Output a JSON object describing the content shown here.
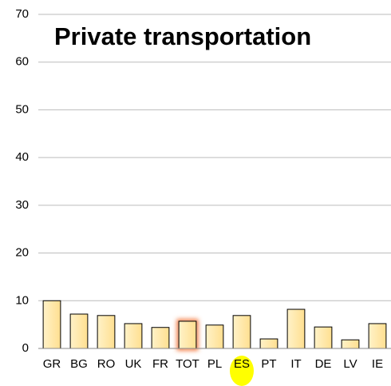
{
  "chart_data": {
    "type": "bar",
    "title": "Private transportation",
    "categories": [
      "GR",
      "BG",
      "RO",
      "UK",
      "FR",
      "TOT",
      "PL",
      "ES",
      "PT",
      "IT",
      "DE",
      "LV",
      "IE"
    ],
    "values": [
      10,
      7.2,
      6.9,
      5.2,
      4.4,
      5.7,
      4.9,
      6.9,
      2.0,
      8.2,
      4.5,
      1.8,
      5.2
    ],
    "color": "#ffe6a0",
    "edge_color": "#000000",
    "ylim": [
      0,
      70
    ],
    "yticks": [
      0,
      10,
      20,
      30,
      40,
      50,
      60,
      70
    ],
    "grid": true,
    "highlighted_bar": "TOT",
    "bar_highlight_color": "#f07030",
    "highlighted_label": "ES",
    "label_highlight_color": "#ffff00"
  }
}
